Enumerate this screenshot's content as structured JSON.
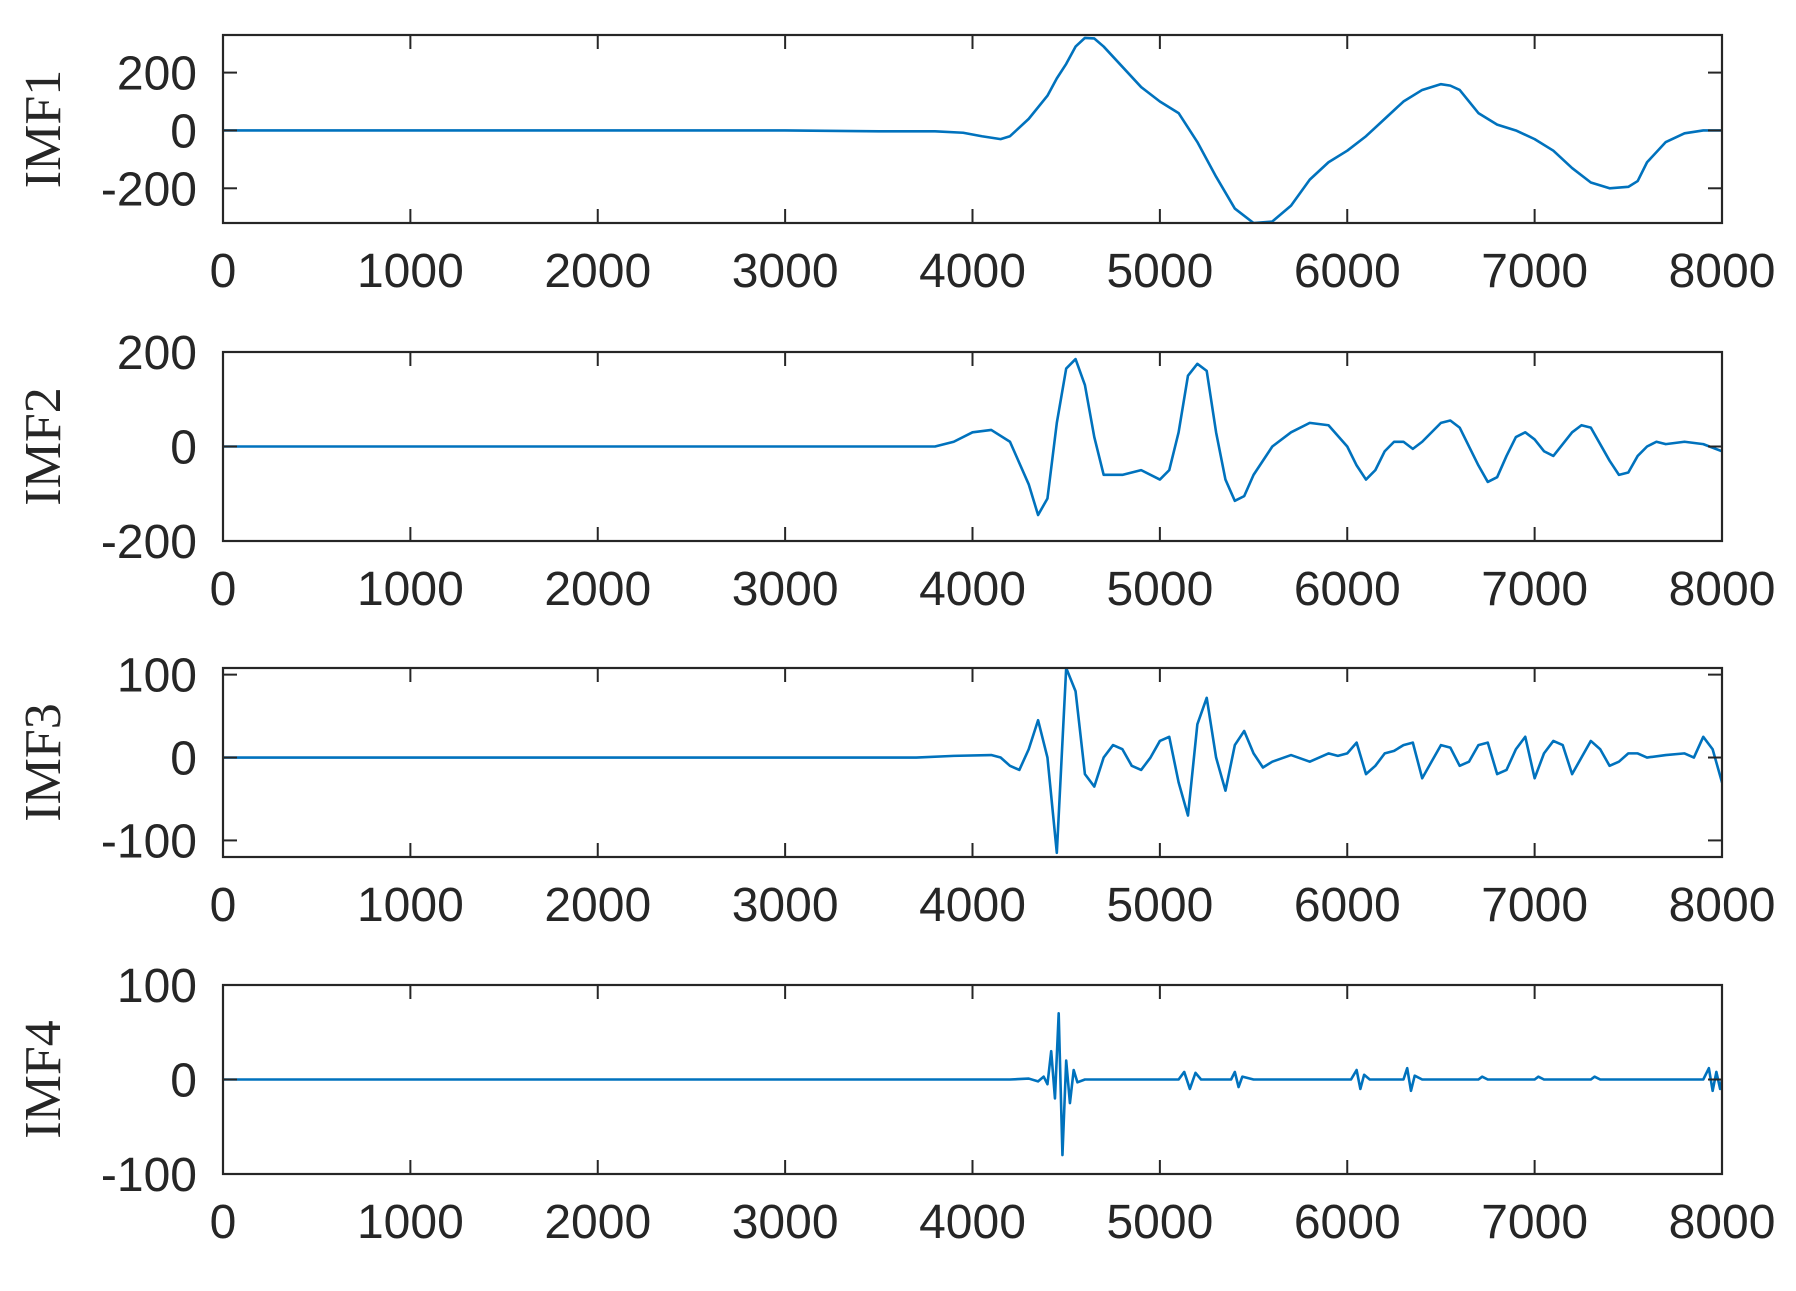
{
  "chart_data": [
    {
      "type": "line",
      "ylabel": "IMF1",
      "xlim": [
        0,
        8000
      ],
      "ylim": [
        -320,
        330
      ],
      "xticks": [
        0,
        1000,
        2000,
        3000,
        4000,
        5000,
        6000,
        7000,
        8000
      ],
      "yticks": [
        -200,
        0,
        200
      ],
      "color": "#0072BD",
      "series": [
        {
          "x": [
            0,
            3000,
            3500,
            3800,
            3950,
            4050,
            4150,
            4200,
            4300,
            4400,
            4450,
            4500,
            4550,
            4600,
            4650,
            4700,
            4800,
            4900,
            5000,
            5100,
            5200,
            5300,
            5400,
            5500,
            5600,
            5700,
            5800,
            5900,
            6000,
            6100,
            6200,
            6300,
            6400,
            6500,
            6550,
            6600,
            6700,
            6800,
            6900,
            7000,
            7100,
            7200,
            7300,
            7400,
            7500,
            7550,
            7600,
            7700,
            7800,
            7900,
            8000
          ],
          "y": [
            0,
            0,
            -3,
            -3,
            -8,
            -20,
            -30,
            -20,
            40,
            120,
            180,
            230,
            290,
            320,
            318,
            290,
            220,
            150,
            100,
            60,
            -40,
            -160,
            -270,
            -320,
            -315,
            -260,
            -170,
            -110,
            -70,
            -20,
            40,
            100,
            140,
            160,
            155,
            140,
            60,
            20,
            0,
            -30,
            -70,
            -130,
            -180,
            -200,
            -195,
            -175,
            -110,
            -40,
            -10,
            0,
            0
          ]
        }
      ]
    },
    {
      "type": "line",
      "ylabel": "IMF2",
      "xlim": [
        0,
        8000
      ],
      "ylim": [
        -200,
        200
      ],
      "xticks": [
        0,
        1000,
        2000,
        3000,
        4000,
        5000,
        6000,
        7000,
        8000
      ],
      "yticks": [
        -200,
        0,
        200
      ],
      "color": "#0072BD",
      "series": [
        {
          "x": [
            0,
            3600,
            3800,
            3900,
            4000,
            4100,
            4200,
            4300,
            4350,
            4400,
            4450,
            4500,
            4550,
            4600,
            4650,
            4700,
            4800,
            4900,
            5000,
            5050,
            5100,
            5150,
            5200,
            5250,
            5300,
            5350,
            5400,
            5450,
            5500,
            5600,
            5700,
            5800,
            5900,
            6000,
            6050,
            6100,
            6150,
            6200,
            6250,
            6300,
            6350,
            6400,
            6500,
            6550,
            6600,
            6700,
            6750,
            6800,
            6850,
            6900,
            6950,
            7000,
            7050,
            7100,
            7200,
            7250,
            7300,
            7400,
            7450,
            7500,
            7550,
            7600,
            7650,
            7700,
            7800,
            7900,
            8000
          ],
          "y": [
            0,
            0,
            0,
            10,
            30,
            35,
            10,
            -80,
            -145,
            -110,
            50,
            165,
            185,
            130,
            20,
            -60,
            -60,
            -50,
            -70,
            -50,
            30,
            150,
            175,
            160,
            30,
            -70,
            -115,
            -105,
            -60,
            0,
            30,
            50,
            45,
            0,
            -40,
            -70,
            -50,
            -10,
            10,
            10,
            -5,
            10,
            50,
            55,
            40,
            -40,
            -75,
            -65,
            -20,
            20,
            30,
            15,
            -10,
            -20,
            30,
            45,
            40,
            -30,
            -60,
            -55,
            -20,
            0,
            10,
            5,
            10,
            5,
            -10
          ]
        }
      ]
    },
    {
      "type": "line",
      "ylabel": "IMF3",
      "xlim": [
        0,
        8000
      ],
      "ylim": [
        -120,
        108
      ],
      "xticks": [
        0,
        1000,
        2000,
        3000,
        4000,
        5000,
        6000,
        7000,
        8000
      ],
      "yticks": [
        -100,
        0,
        100
      ],
      "color": "#0072BD",
      "series": [
        {
          "x": [
            0,
            3700,
            3900,
            4100,
            4150,
            4200,
            4250,
            4300,
            4350,
            4400,
            4450,
            4500,
            4550,
            4600,
            4650,
            4700,
            4750,
            4800,
            4850,
            4900,
            4950,
            5000,
            5050,
            5100,
            5150,
            5200,
            5250,
            5300,
            5350,
            5400,
            5450,
            5500,
            5550,
            5600,
            5700,
            5800,
            5850,
            5900,
            5950,
            6000,
            6050,
            6100,
            6150,
            6200,
            6250,
            6300,
            6350,
            6400,
            6450,
            6500,
            6550,
            6600,
            6650,
            6700,
            6750,
            6800,
            6850,
            6900,
            6950,
            7000,
            7050,
            7100,
            7150,
            7200,
            7250,
            7300,
            7350,
            7400,
            7450,
            7500,
            7550,
            7600,
            7700,
            7800,
            7850,
            7900,
            7950,
            8000
          ],
          "y": [
            0,
            0,
            2,
            3,
            0,
            -10,
            -15,
            10,
            45,
            0,
            -115,
            108,
            80,
            -20,
            -35,
            0,
            15,
            10,
            -10,
            -15,
            0,
            20,
            25,
            -30,
            -70,
            40,
            72,
            0,
            -40,
            15,
            32,
            5,
            -12,
            -5,
            3,
            -5,
            0,
            5,
            2,
            5,
            18,
            -20,
            -10,
            5,
            8,
            15,
            18,
            -25,
            -5,
            15,
            12,
            -10,
            -5,
            15,
            18,
            -20,
            -15,
            10,
            25,
            -25,
            5,
            20,
            15,
            -20,
            0,
            20,
            10,
            -10,
            -5,
            5,
            5,
            0,
            3,
            5,
            0,
            25,
            10,
            -30
          ]
        }
      ]
    },
    {
      "type": "line",
      "ylabel": "IMF4",
      "xlim": [
        0,
        8000
      ],
      "ylim": [
        -100,
        100
      ],
      "xticks": [
        0,
        1000,
        2000,
        3000,
        4000,
        5000,
        6000,
        7000,
        8000
      ],
      "yticks": [
        -100,
        0,
        100
      ],
      "color": "#0072BD",
      "series": [
        {
          "x": [
            0,
            4200,
            4300,
            4350,
            4380,
            4400,
            4420,
            4440,
            4460,
            4480,
            4500,
            4520,
            4540,
            4560,
            4600,
            5100,
            5130,
            5160,
            5190,
            5220,
            5300,
            5380,
            5400,
            5420,
            5440,
            5500,
            5900,
            6020,
            6050,
            6070,
            6090,
            6120,
            6150,
            6250,
            6300,
            6320,
            6340,
            6360,
            6400,
            6650,
            6700,
            6720,
            6750,
            6950,
            7000,
            7020,
            7050,
            7250,
            7300,
            7320,
            7350,
            7600,
            7700,
            7900,
            7930,
            7950,
            7970,
            7990,
            8000
          ],
          "y": [
            0,
            0,
            1,
            -2,
            3,
            -5,
            30,
            -20,
            70,
            -80,
            20,
            -25,
            10,
            -3,
            0,
            0,
            8,
            -10,
            7,
            0,
            0,
            0,
            8,
            -8,
            3,
            0,
            0,
            0,
            10,
            -10,
            5,
            0,
            0,
            0,
            0,
            12,
            -12,
            4,
            0,
            0,
            0,
            3,
            0,
            0,
            0,
            3,
            0,
            0,
            0,
            3,
            0,
            0,
            0,
            0,
            12,
            -12,
            8,
            -10,
            0
          ]
        }
      ]
    }
  ]
}
